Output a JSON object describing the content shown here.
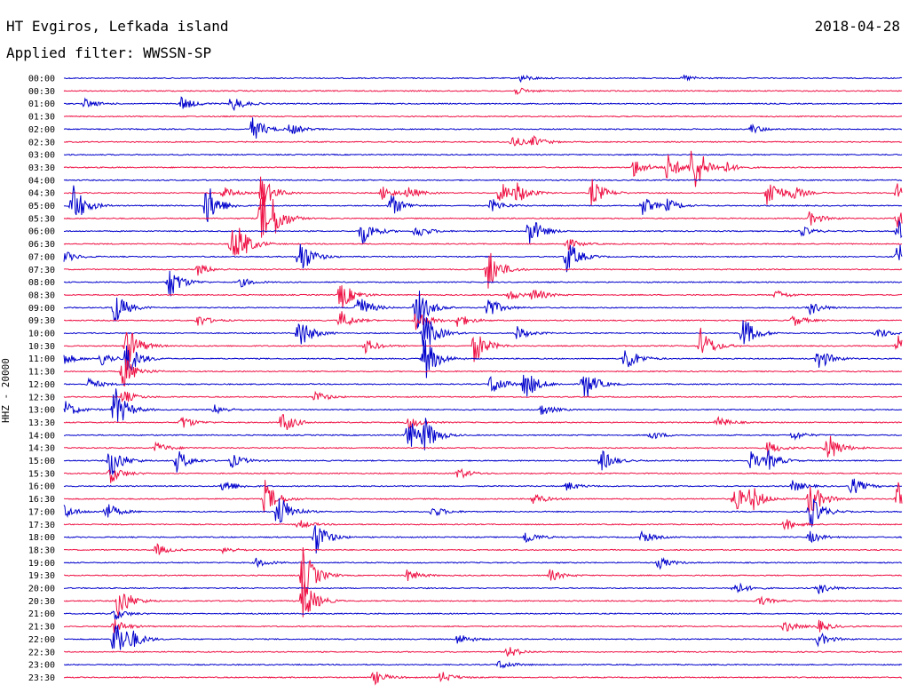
{
  "header": {
    "station": "HT Evgiros, Lefkada island",
    "date": "2018-04-28",
    "filter": "Applied filter: WWSSN-SP"
  },
  "chart_data": {
    "type": "line",
    "title": "HT Evgiros, Lefkada island",
    "ylabel": "HHZ - 20000",
    "traces": [
      {
        "time": "00:00",
        "color": "#0000cc",
        "events": [
          [
            0.545,
            0.3
          ],
          [
            0.74,
            0.25
          ]
        ]
      },
      {
        "time": "00:30",
        "color": "#ee1144",
        "events": [
          [
            0.54,
            0.3
          ]
        ]
      },
      {
        "time": "01:00",
        "color": "#0000cc",
        "events": [
          [
            0.025,
            0.4
          ],
          [
            0.14,
            0.6
          ],
          [
            0.2,
            0.7
          ]
        ]
      },
      {
        "time": "01:30",
        "color": "#ee1144",
        "events": []
      },
      {
        "time": "02:00",
        "color": "#0000cc",
        "events": [
          [
            0.225,
            1.1
          ],
          [
            0.27,
            0.5
          ],
          [
            0.82,
            0.4
          ]
        ]
      },
      {
        "time": "02:30",
        "color": "#ee1144",
        "events": [
          [
            0.535,
            0.5
          ],
          [
            0.56,
            0.4
          ]
        ]
      },
      {
        "time": "03:00",
        "color": "#0000cc",
        "events": []
      },
      {
        "time": "03:30",
        "color": "#ee1144",
        "events": [
          [
            0.68,
            0.8
          ],
          [
            0.72,
            1.2
          ],
          [
            0.75,
            2.5
          ],
          [
            0.79,
            0.4
          ]
        ]
      },
      {
        "time": "04:00",
        "color": "#0000cc",
        "events": []
      },
      {
        "time": "04:30",
        "color": "#ee1144",
        "events": [
          [
            0.19,
            0.5
          ],
          [
            0.235,
            1.5
          ],
          [
            0.38,
            0.6
          ],
          [
            0.41,
            0.5
          ],
          [
            0.52,
            1.0
          ],
          [
            0.54,
            0.8
          ],
          [
            0.63,
            1.2
          ],
          [
            0.84,
            1.5
          ],
          [
            0.87,
            0.5
          ],
          [
            0.995,
            1.5
          ]
        ]
      },
      {
        "time": "05:00",
        "color": "#0000cc",
        "events": [
          [
            0.01,
            2.0
          ],
          [
            0.17,
            2.0
          ],
          [
            0.39,
            1.0
          ],
          [
            0.51,
            0.6
          ],
          [
            0.69,
            0.8
          ],
          [
            0.72,
            0.5
          ]
        ]
      },
      {
        "time": "05:30",
        "color": "#ee1144",
        "events": [
          [
            0.235,
            2.5
          ],
          [
            0.25,
            1.0
          ],
          [
            0.89,
            0.6
          ],
          [
            0.995,
            0.9
          ]
        ]
      },
      {
        "time": "06:00",
        "color": "#0000cc",
        "events": [
          [
            0.355,
            1.2
          ],
          [
            0.42,
            0.6
          ],
          [
            0.555,
            1.4
          ],
          [
            0.88,
            0.4
          ],
          [
            0.995,
            1.0
          ]
        ]
      },
      {
        "time": "06:30",
        "color": "#ee1144",
        "events": [
          [
            0.2,
            1.5
          ],
          [
            0.21,
            0.8
          ],
          [
            0.6,
            0.5
          ]
        ]
      },
      {
        "time": "07:00",
        "color": "#0000cc",
        "events": [
          [
            0.0,
            0.5
          ],
          [
            0.28,
            1.8
          ],
          [
            0.6,
            1.5
          ],
          [
            0.995,
            1.2
          ]
        ]
      },
      {
        "time": "07:30",
        "color": "#ee1144",
        "events": [
          [
            0.16,
            0.5
          ],
          [
            0.505,
            2.0
          ]
        ]
      },
      {
        "time": "08:00",
        "color": "#0000cc",
        "events": [
          [
            0.125,
            1.5
          ],
          [
            0.21,
            0.4
          ]
        ]
      },
      {
        "time": "08:30",
        "color": "#ee1144",
        "events": [
          [
            0.33,
            1.3
          ],
          [
            0.53,
            0.5
          ],
          [
            0.56,
            0.6
          ],
          [
            0.85,
            0.4
          ]
        ]
      },
      {
        "time": "09:00",
        "color": "#0000cc",
        "events": [
          [
            0.06,
            1.5
          ],
          [
            0.35,
            1.2
          ],
          [
            0.42,
            2.0
          ],
          [
            0.505,
            1.0
          ],
          [
            0.89,
            0.6
          ]
        ]
      },
      {
        "time": "09:30",
        "color": "#ee1144",
        "events": [
          [
            0.16,
            0.5
          ],
          [
            0.33,
            0.8
          ],
          [
            0.42,
            1.0
          ],
          [
            0.47,
            0.6
          ],
          [
            0.87,
            0.5
          ]
        ]
      },
      {
        "time": "10:00",
        "color": "#0000cc",
        "events": [
          [
            0.28,
            1.5
          ],
          [
            0.43,
            1.8
          ],
          [
            0.54,
            0.6
          ],
          [
            0.81,
            1.5
          ],
          [
            0.97,
            0.5
          ]
        ]
      },
      {
        "time": "10:30",
        "color": "#ee1144",
        "events": [
          [
            0.075,
            1.8
          ],
          [
            0.36,
            0.6
          ],
          [
            0.49,
            1.5
          ],
          [
            0.76,
            1.5
          ],
          [
            0.995,
            1.3
          ]
        ]
      },
      {
        "time": "11:00",
        "color": "#0000cc",
        "events": [
          [
            0.0,
            0.5
          ],
          [
            0.045,
            0.6
          ],
          [
            0.075,
            1.5
          ],
          [
            0.43,
            2.0
          ],
          [
            0.67,
            1.2
          ],
          [
            0.9,
            1.0
          ]
        ]
      },
      {
        "time": "11:30",
        "color": "#ee1144",
        "events": [
          [
            0.07,
            1.5
          ]
        ]
      },
      {
        "time": "12:00",
        "color": "#0000cc",
        "events": [
          [
            0.03,
            0.5
          ],
          [
            0.51,
            1.0
          ],
          [
            0.55,
            1.4
          ],
          [
            0.62,
            1.5
          ]
        ]
      },
      {
        "time": "12:30",
        "color": "#ee1144",
        "events": [
          [
            0.07,
            0.6
          ],
          [
            0.3,
            0.5
          ]
        ]
      },
      {
        "time": "13:00",
        "color": "#0000cc",
        "events": [
          [
            0.0,
            0.8
          ],
          [
            0.06,
            2.0
          ],
          [
            0.18,
            0.4
          ],
          [
            0.57,
            0.5
          ]
        ]
      },
      {
        "time": "13:30",
        "color": "#ee1144",
        "events": [
          [
            0.14,
            0.6
          ],
          [
            0.26,
            1.0
          ],
          [
            0.41,
            0.6
          ],
          [
            0.78,
            0.5
          ]
        ]
      },
      {
        "time": "14:00",
        "color": "#0000cc",
        "events": [
          [
            0.41,
            1.5
          ],
          [
            0.43,
            1.3
          ],
          [
            0.7,
            0.4
          ],
          [
            0.87,
            0.4
          ]
        ]
      },
      {
        "time": "14:30",
        "color": "#ee1144",
        "events": [
          [
            0.11,
            0.5
          ],
          [
            0.84,
            0.6
          ],
          [
            0.91,
            1.5
          ]
        ]
      },
      {
        "time": "15:00",
        "color": "#0000cc",
        "events": [
          [
            0.055,
            1.5
          ],
          [
            0.135,
            1.0
          ],
          [
            0.2,
            0.6
          ],
          [
            0.64,
            1.0
          ],
          [
            0.82,
            0.8
          ],
          [
            0.84,
            0.7
          ]
        ]
      },
      {
        "time": "15:30",
        "color": "#ee1144",
        "events": [
          [
            0.055,
            0.8
          ],
          [
            0.47,
            0.5
          ]
        ]
      },
      {
        "time": "16:00",
        "color": "#0000cc",
        "events": [
          [
            0.19,
            0.6
          ],
          [
            0.6,
            0.4
          ],
          [
            0.87,
            0.5
          ],
          [
            0.94,
            0.8
          ]
        ]
      },
      {
        "time": "16:30",
        "color": "#ee1144",
        "events": [
          [
            0.24,
            1.5
          ],
          [
            0.56,
            0.5
          ],
          [
            0.8,
            1.2
          ],
          [
            0.82,
            1.0
          ],
          [
            0.89,
            1.6
          ],
          [
            0.995,
            1.5
          ]
        ]
      },
      {
        "time": "17:00",
        "color": "#0000cc",
        "events": [
          [
            0.0,
            0.6
          ],
          [
            0.05,
            0.8
          ],
          [
            0.255,
            1.8
          ],
          [
            0.44,
            0.5
          ],
          [
            0.89,
            1.5
          ]
        ]
      },
      {
        "time": "17:30",
        "color": "#ee1144",
        "events": [
          [
            0.28,
            0.4
          ],
          [
            0.86,
            0.5
          ]
        ]
      },
      {
        "time": "18:00",
        "color": "#0000cc",
        "events": [
          [
            0.3,
            1.5
          ],
          [
            0.55,
            0.6
          ],
          [
            0.69,
            0.5
          ],
          [
            0.89,
            0.5
          ]
        ]
      },
      {
        "time": "18:30",
        "color": "#ee1144",
        "events": [
          [
            0.11,
            0.5
          ],
          [
            0.19,
            0.3
          ]
        ]
      },
      {
        "time": "19:00",
        "color": "#0000cc",
        "events": [
          [
            0.23,
            0.4
          ],
          [
            0.71,
            0.5
          ]
        ]
      },
      {
        "time": "19:30",
        "color": "#ee1144",
        "events": [
          [
            0.285,
            2.5
          ],
          [
            0.41,
            0.5
          ],
          [
            0.58,
            0.5
          ]
        ]
      },
      {
        "time": "20:00",
        "color": "#0000cc",
        "events": [
          [
            0.8,
            0.6
          ],
          [
            0.9,
            0.5
          ]
        ]
      },
      {
        "time": "20:30",
        "color": "#ee1144",
        "events": [
          [
            0.065,
            1.5
          ],
          [
            0.285,
            2.0
          ],
          [
            0.83,
            0.4
          ]
        ]
      },
      {
        "time": "21:00",
        "color": "#0000cc",
        "events": [
          [
            0.06,
            0.5
          ]
        ]
      },
      {
        "time": "21:30",
        "color": "#ee1144",
        "events": [
          [
            0.06,
            0.6
          ],
          [
            0.86,
            0.5
          ],
          [
            0.9,
            0.5
          ]
        ]
      },
      {
        "time": "22:00",
        "color": "#0000cc",
        "events": [
          [
            0.06,
            2.2
          ],
          [
            0.08,
            0.5
          ],
          [
            0.47,
            0.5
          ],
          [
            0.9,
            0.6
          ]
        ]
      },
      {
        "time": "22:30",
        "color": "#ee1144",
        "events": [
          [
            0.53,
            0.5
          ]
        ]
      },
      {
        "time": "23:00",
        "color": "#0000cc",
        "events": [
          [
            0.52,
            0.4
          ]
        ]
      },
      {
        "time": "23:30",
        "color": "#ee1144",
        "events": [
          [
            0.37,
            0.6
          ],
          [
            0.45,
            0.5
          ]
        ]
      }
    ]
  }
}
